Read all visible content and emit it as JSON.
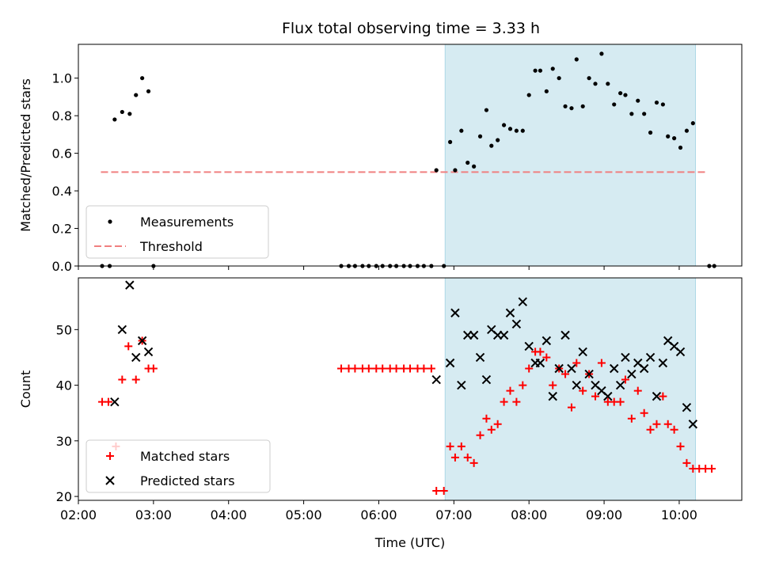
{
  "chart_data": [
    {
      "type": "scatter",
      "title": "Flux total observing time = 3.33 h",
      "xlabel": "",
      "ylabel": "Matched/Predicted stars",
      "xlim": [
        "02:00",
        "10:50"
      ],
      "ylim": [
        0,
        1.18
      ],
      "yticks": [
        "0.0",
        "0.2",
        "0.4",
        "0.6",
        "0.8",
        "1.0"
      ],
      "grid": false,
      "legend_position": "lower-left",
      "shaded_span": {
        "start": "06:53",
        "end": "10:13",
        "color": "#add8e6"
      },
      "threshold": {
        "name": "Threshold",
        "value": 0.5,
        "start": "02:18",
        "end": "10:22",
        "color": "#f08080",
        "style": "dashed"
      },
      "series": [
        {
          "name": "Measurements",
          "marker": "dot",
          "color": "#000000",
          "points": [
            {
              "x": "02:19",
              "y": 0
            },
            {
              "x": "02:25",
              "y": 0
            },
            {
              "x": "02:29",
              "y": 0.78
            },
            {
              "x": "02:35",
              "y": 0.82
            },
            {
              "x": "02:41",
              "y": 0.81
            },
            {
              "x": "02:46",
              "y": 0.91
            },
            {
              "x": "02:51",
              "y": 1.0
            },
            {
              "x": "02:56",
              "y": 0.93
            },
            {
              "x": "03:00",
              "y": 0
            },
            {
              "x": "05:30",
              "y": 0
            },
            {
              "x": "05:36",
              "y": 0
            },
            {
              "x": "05:41",
              "y": 0
            },
            {
              "x": "05:47",
              "y": 0
            },
            {
              "x": "05:52",
              "y": 0
            },
            {
              "x": "05:58",
              "y": 0
            },
            {
              "x": "06:03",
              "y": 0
            },
            {
              "x": "06:09",
              "y": 0
            },
            {
              "x": "06:14",
              "y": 0
            },
            {
              "x": "06:20",
              "y": 0
            },
            {
              "x": "06:25",
              "y": 0
            },
            {
              "x": "06:31",
              "y": 0
            },
            {
              "x": "06:36",
              "y": 0
            },
            {
              "x": "06:42",
              "y": 0
            },
            {
              "x": "06:46",
              "y": 0.51
            },
            {
              "x": "06:52",
              "y": 0
            },
            {
              "x": "06:57",
              "y": 0.66
            },
            {
              "x": "07:01",
              "y": 0.51
            },
            {
              "x": "07:06",
              "y": 0.72
            },
            {
              "x": "07:11",
              "y": 0.55
            },
            {
              "x": "07:16",
              "y": 0.53
            },
            {
              "x": "07:21",
              "y": 0.69
            },
            {
              "x": "07:26",
              "y": 0.83
            },
            {
              "x": "07:30",
              "y": 0.64
            },
            {
              "x": "07:35",
              "y": 0.67
            },
            {
              "x": "07:40",
              "y": 0.75
            },
            {
              "x": "07:45",
              "y": 0.73
            },
            {
              "x": "07:50",
              "y": 0.72
            },
            {
              "x": "07:55",
              "y": 0.72
            },
            {
              "x": "08:00",
              "y": 0.91
            },
            {
              "x": "08:05",
              "y": 1.04
            },
            {
              "x": "08:09",
              "y": 1.04
            },
            {
              "x": "08:14",
              "y": 0.93
            },
            {
              "x": "08:19",
              "y": 1.05
            },
            {
              "x": "08:24",
              "y": 1.0
            },
            {
              "x": "08:29",
              "y": 0.85
            },
            {
              "x": "08:34",
              "y": 0.84
            },
            {
              "x": "08:38",
              "y": 1.1
            },
            {
              "x": "08:43",
              "y": 0.85
            },
            {
              "x": "08:48",
              "y": 1.0
            },
            {
              "x": "08:53",
              "y": 0.97
            },
            {
              "x": "08:58",
              "y": 1.13
            },
            {
              "x": "09:03",
              "y": 0.97
            },
            {
              "x": "09:08",
              "y": 0.86
            },
            {
              "x": "09:13",
              "y": 0.92
            },
            {
              "x": "09:17",
              "y": 0.91
            },
            {
              "x": "09:22",
              "y": 0.81
            },
            {
              "x": "09:27",
              "y": 0.88
            },
            {
              "x": "09:32",
              "y": 0.81
            },
            {
              "x": "09:37",
              "y": 0.71
            },
            {
              "x": "09:42",
              "y": 0.87
            },
            {
              "x": "09:47",
              "y": 0.86
            },
            {
              "x": "09:51",
              "y": 0.69
            },
            {
              "x": "09:56",
              "y": 0.68
            },
            {
              "x": "10:01",
              "y": 0.63
            },
            {
              "x": "10:06",
              "y": 0.72
            },
            {
              "x": "10:11",
              "y": 0.76
            },
            {
              "x": "10:24",
              "y": 0
            },
            {
              "x": "10:28",
              "y": 0
            }
          ]
        }
      ]
    },
    {
      "type": "scatter",
      "title": "",
      "xlabel": "Time (UTC)",
      "ylabel": "Count",
      "xlim": [
        "02:00",
        "10:50"
      ],
      "xticks": [
        "02:00",
        "03:00",
        "04:00",
        "05:00",
        "06:00",
        "07:00",
        "08:00",
        "09:00",
        "10:00"
      ],
      "ylim": [
        19.3,
        59.3
      ],
      "yticks": [
        "20",
        "30",
        "40",
        "50"
      ],
      "grid": false,
      "legend_position": "lower-left",
      "shaded_span": {
        "start": "06:53",
        "end": "10:13",
        "color": "#add8e6"
      },
      "series": [
        {
          "name": "Matched stars",
          "marker": "plus",
          "color": "#ff0000",
          "points": [
            {
              "x": "02:19",
              "y": 37
            },
            {
              "x": "02:24",
              "y": 37
            },
            {
              "x": "02:30",
              "y": 29
            },
            {
              "x": "02:35",
              "y": 41
            },
            {
              "x": "02:40",
              "y": 47
            },
            {
              "x": "02:46",
              "y": 41
            },
            {
              "x": "02:51",
              "y": 48
            },
            {
              "x": "02:56",
              "y": 43
            },
            {
              "x": "03:00",
              "y": 43
            },
            {
              "x": "05:30",
              "y": 43
            },
            {
              "x": "05:36",
              "y": 43
            },
            {
              "x": "05:41",
              "y": 43
            },
            {
              "x": "05:47",
              "y": 43
            },
            {
              "x": "05:52",
              "y": 43
            },
            {
              "x": "05:58",
              "y": 43
            },
            {
              "x": "06:03",
              "y": 43
            },
            {
              "x": "06:09",
              "y": 43
            },
            {
              "x": "06:14",
              "y": 43
            },
            {
              "x": "06:20",
              "y": 43
            },
            {
              "x": "06:25",
              "y": 43
            },
            {
              "x": "06:31",
              "y": 43
            },
            {
              "x": "06:36",
              "y": 43
            },
            {
              "x": "06:42",
              "y": 43
            },
            {
              "x": "06:46",
              "y": 21
            },
            {
              "x": "06:52",
              "y": 21
            },
            {
              "x": "06:57",
              "y": 29
            },
            {
              "x": "07:01",
              "y": 27
            },
            {
              "x": "07:06",
              "y": 29
            },
            {
              "x": "07:11",
              "y": 27
            },
            {
              "x": "07:16",
              "y": 26
            },
            {
              "x": "07:21",
              "y": 31
            },
            {
              "x": "07:26",
              "y": 34
            },
            {
              "x": "07:30",
              "y": 32
            },
            {
              "x": "07:35",
              "y": 33
            },
            {
              "x": "07:40",
              "y": 37
            },
            {
              "x": "07:45",
              "y": 39
            },
            {
              "x": "07:50",
              "y": 37
            },
            {
              "x": "07:55",
              "y": 40
            },
            {
              "x": "08:00",
              "y": 43
            },
            {
              "x": "08:05",
              "y": 46
            },
            {
              "x": "08:09",
              "y": 46
            },
            {
              "x": "08:14",
              "y": 45
            },
            {
              "x": "08:19",
              "y": 40
            },
            {
              "x": "08:24",
              "y": 43
            },
            {
              "x": "08:29",
              "y": 42
            },
            {
              "x": "08:34",
              "y": 36
            },
            {
              "x": "08:38",
              "y": 44
            },
            {
              "x": "08:43",
              "y": 39
            },
            {
              "x": "08:48",
              "y": 42
            },
            {
              "x": "08:53",
              "y": 38
            },
            {
              "x": "08:58",
              "y": 44
            },
            {
              "x": "09:03",
              "y": 37
            },
            {
              "x": "09:08",
              "y": 37
            },
            {
              "x": "09:13",
              "y": 37
            },
            {
              "x": "09:17",
              "y": 41
            },
            {
              "x": "09:22",
              "y": 34
            },
            {
              "x": "09:27",
              "y": 39
            },
            {
              "x": "09:32",
              "y": 35
            },
            {
              "x": "09:37",
              "y": 32
            },
            {
              "x": "09:42",
              "y": 33
            },
            {
              "x": "09:47",
              "y": 38
            },
            {
              "x": "09:51",
              "y": 33
            },
            {
              "x": "09:56",
              "y": 32
            },
            {
              "x": "10:01",
              "y": 29
            },
            {
              "x": "10:06",
              "y": 26
            },
            {
              "x": "10:11",
              "y": 25
            },
            {
              "x": "10:16",
              "y": 25
            },
            {
              "x": "10:21",
              "y": 25
            },
            {
              "x": "10:26",
              "y": 25
            }
          ]
        },
        {
          "name": "Predicted stars",
          "marker": "x",
          "color": "#000000",
          "points": [
            {
              "x": "02:29",
              "y": 37
            },
            {
              "x": "02:35",
              "y": 50
            },
            {
              "x": "02:41",
              "y": 58
            },
            {
              "x": "02:46",
              "y": 45
            },
            {
              "x": "02:51",
              "y": 48
            },
            {
              "x": "02:56",
              "y": 46
            },
            {
              "x": "06:46",
              "y": 41
            },
            {
              "x": "06:57",
              "y": 44
            },
            {
              "x": "07:01",
              "y": 53
            },
            {
              "x": "07:06",
              "y": 40
            },
            {
              "x": "07:11",
              "y": 49
            },
            {
              "x": "07:16",
              "y": 49
            },
            {
              "x": "07:21",
              "y": 45
            },
            {
              "x": "07:26",
              "y": 41
            },
            {
              "x": "07:30",
              "y": 50
            },
            {
              "x": "07:35",
              "y": 49
            },
            {
              "x": "07:40",
              "y": 49
            },
            {
              "x": "07:45",
              "y": 53
            },
            {
              "x": "07:50",
              "y": 51
            },
            {
              "x": "07:55",
              "y": 55
            },
            {
              "x": "08:00",
              "y": 47
            },
            {
              "x": "08:05",
              "y": 44
            },
            {
              "x": "08:09",
              "y": 44
            },
            {
              "x": "08:14",
              "y": 48
            },
            {
              "x": "08:19",
              "y": 38
            },
            {
              "x": "08:24",
              "y": 43
            },
            {
              "x": "08:29",
              "y": 49
            },
            {
              "x": "08:34",
              "y": 43
            },
            {
              "x": "08:38",
              "y": 40
            },
            {
              "x": "08:43",
              "y": 46
            },
            {
              "x": "08:48",
              "y": 42
            },
            {
              "x": "08:53",
              "y": 40
            },
            {
              "x": "08:58",
              "y": 39
            },
            {
              "x": "09:03",
              "y": 38
            },
            {
              "x": "09:08",
              "y": 43
            },
            {
              "x": "09:13",
              "y": 40
            },
            {
              "x": "09:17",
              "y": 45
            },
            {
              "x": "09:22",
              "y": 42
            },
            {
              "x": "09:27",
              "y": 44
            },
            {
              "x": "09:32",
              "y": 43
            },
            {
              "x": "09:37",
              "y": 45
            },
            {
              "x": "09:42",
              "y": 38
            },
            {
              "x": "09:47",
              "y": 44
            },
            {
              "x": "09:51",
              "y": 48
            },
            {
              "x": "09:56",
              "y": 47
            },
            {
              "x": "10:01",
              "y": 46
            },
            {
              "x": "10:06",
              "y": 36
            },
            {
              "x": "10:11",
              "y": 33
            }
          ]
        }
      ]
    }
  ]
}
